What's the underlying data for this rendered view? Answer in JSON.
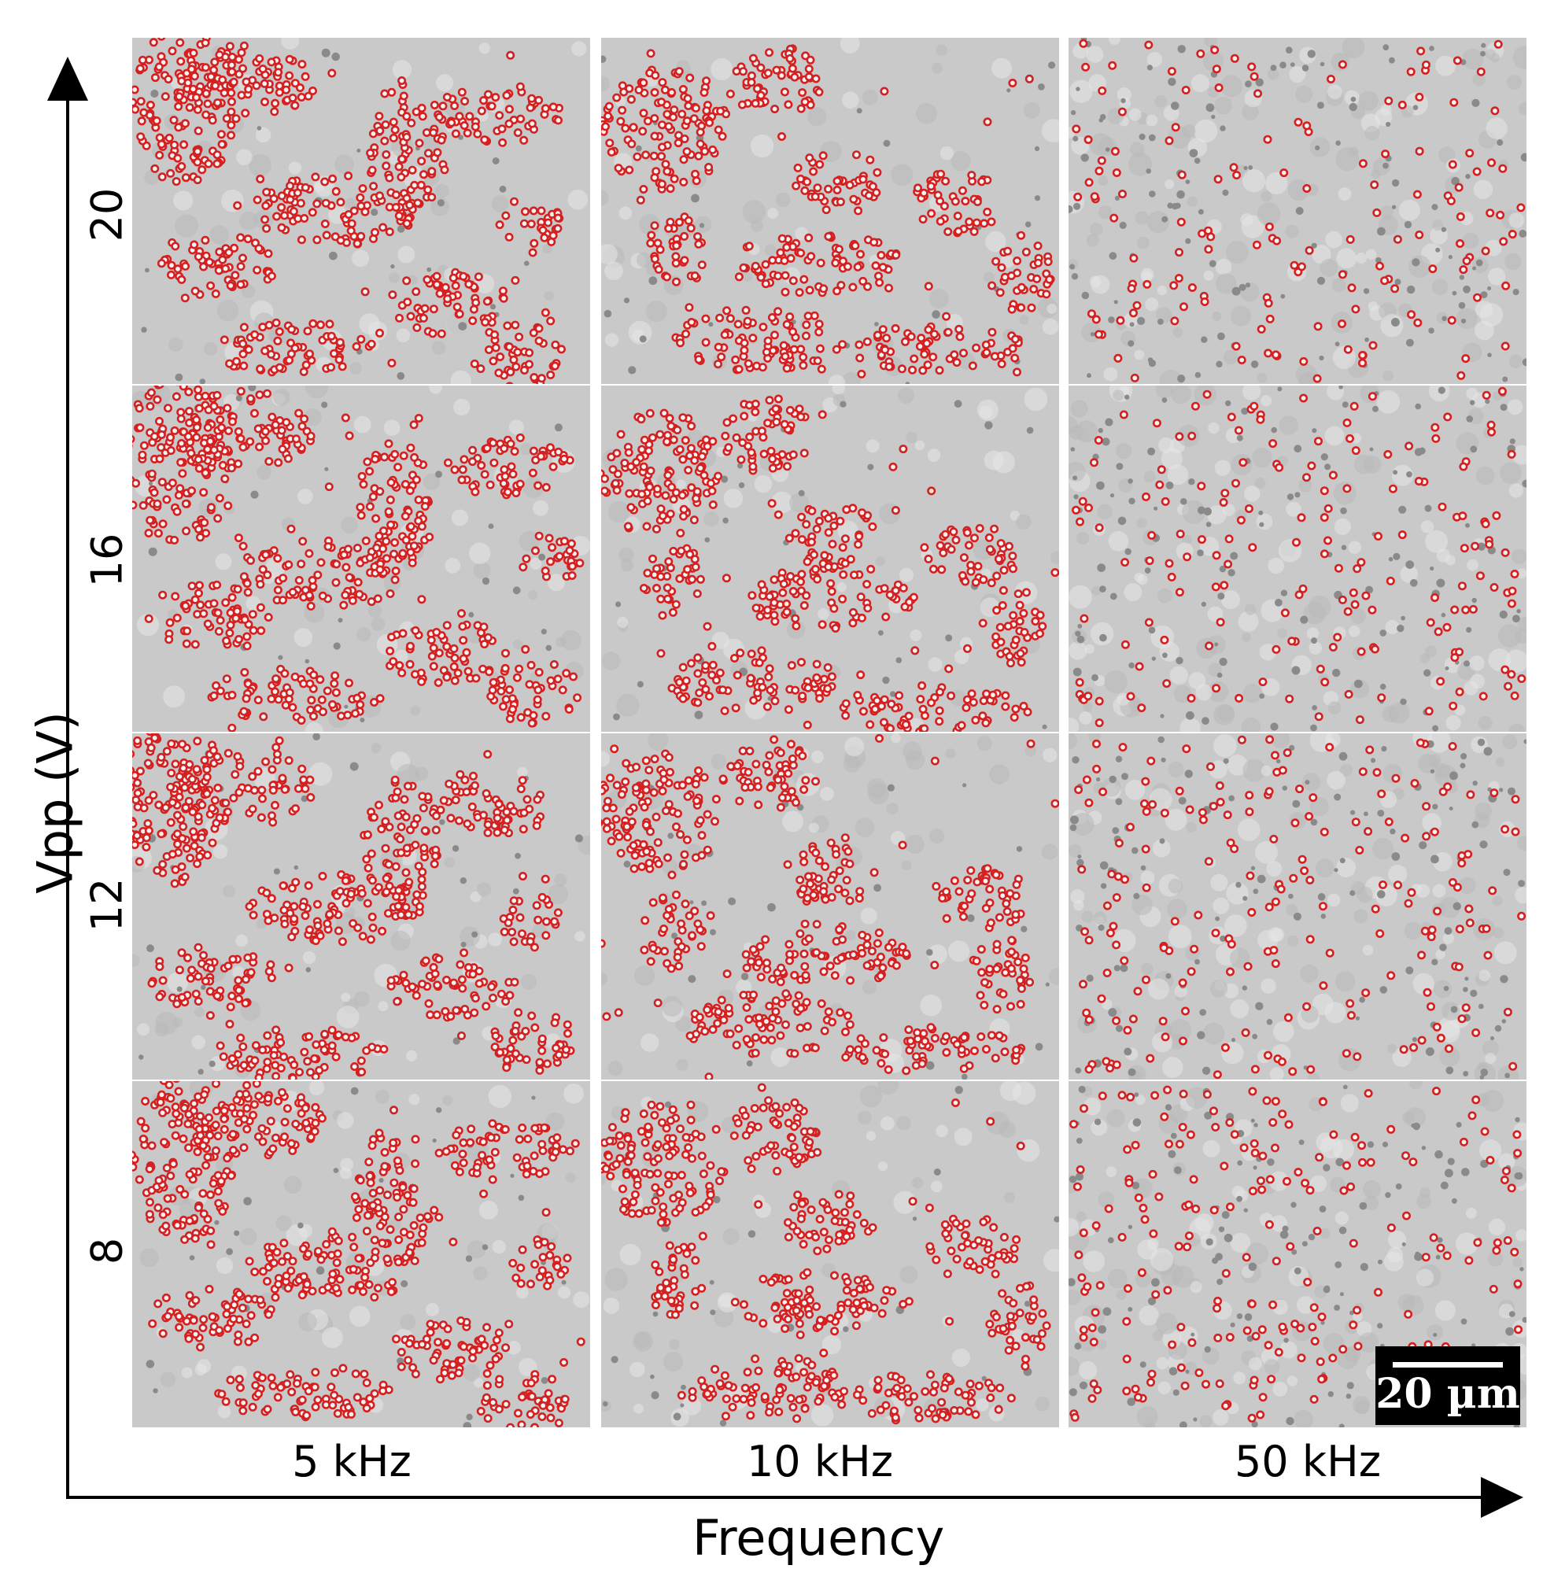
{
  "axes": {
    "x_title": "Frequency",
    "y_title": "Vpp (V)"
  },
  "columns": [
    "5 kHz",
    "10 kHz",
    "50 kHz"
  ],
  "rows": [
    "20",
    "16",
    "12",
    "8"
  ],
  "scale_bar": {
    "label": "20 µm"
  },
  "colors": {
    "particle_ring": "#d42020",
    "particle_core": "#f3f3f3",
    "background": "#c9c9c9",
    "bright_spot": "#e6e6e6",
    "dark_spot": "#8a8a8a"
  },
  "panel_style": {
    "5 kHz": "aggregated clusters of particles",
    "10 kHz": "aggregated clusters and chains of particles",
    "50 kHz": "dispersed individual particles"
  }
}
